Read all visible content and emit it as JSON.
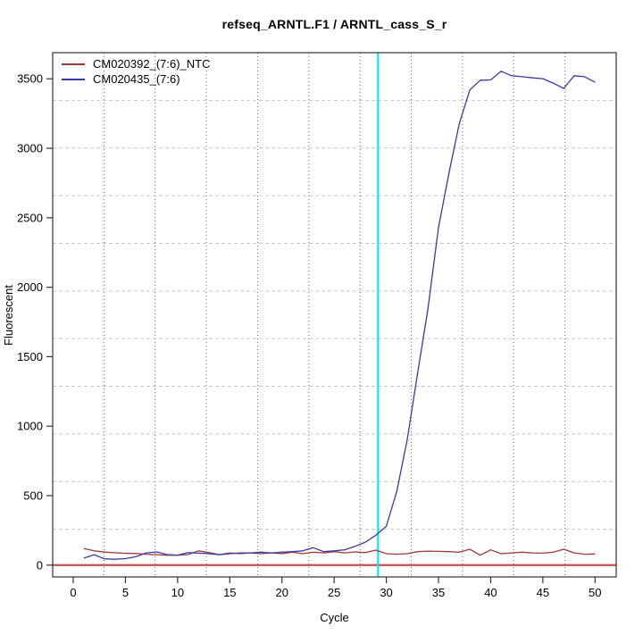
{
  "chart_data": {
    "type": "line",
    "title": "refseq_ARNTL.F1 / ARNTL_cass_S_r",
    "xlabel": "Cycle",
    "ylabel": "Fluorescent",
    "x_ticks": [
      0,
      5,
      10,
      15,
      20,
      25,
      30,
      35,
      40,
      45,
      50
    ],
    "y_ticks": [
      0,
      500,
      1000,
      1500,
      2000,
      2500,
      3000,
      3500
    ],
    "xlim": [
      -1.97,
      52.03
    ],
    "ylim": [
      -85,
      3688
    ],
    "grid": {
      "divisions": 11,
      "v_color": "#6e6e6e",
      "v_dash": "1 3",
      "h_color": "#c6c6c6",
      "h_dash": "4 3"
    },
    "threshold_line": {
      "y": 0,
      "color": "#c05050",
      "width": 2.2
    },
    "ct_line": {
      "x": 29.2,
      "color": "#00e8f0",
      "width": 2
    },
    "box_color": "#333333",
    "legend_position": "top-left",
    "series": [
      {
        "name": "CM020392_(7:6)_NTC",
        "color": "#9a3a3a",
        "x": [
          1,
          2,
          3,
          4,
          5,
          6,
          7,
          8,
          9,
          10,
          11,
          12,
          13,
          14,
          15,
          16,
          17,
          18,
          19,
          20,
          21,
          22,
          23,
          24,
          25,
          26,
          27,
          28,
          29,
          30,
          31,
          32,
          33,
          34,
          35,
          36,
          37,
          38,
          39,
          40,
          41,
          42,
          43,
          44,
          45,
          46,
          47,
          48,
          49,
          50
        ],
        "values": [
          120,
          103,
          94,
          89,
          85,
          84,
          78,
          75,
          71,
          71,
          76,
          103,
          90,
          76,
          88,
          82,
          88,
          82,
          88,
          82,
          93,
          82,
          93,
          88,
          97,
          88,
          95,
          90,
          108,
          82,
          78,
          82,
          97,
          101,
          99,
          97,
          93,
          114,
          71,
          110,
          82,
          88,
          93,
          88,
          86,
          93,
          114,
          88,
          78,
          80
        ]
      },
      {
        "name": "CM020435_(7:6)",
        "color": "#3a3aa6",
        "x": [
          1,
          2,
          3,
          4,
          5,
          6,
          7,
          8,
          9,
          10,
          11,
          12,
          13,
          14,
          15,
          16,
          17,
          18,
          19,
          20,
          21,
          22,
          23,
          24,
          25,
          26,
          27,
          28,
          29,
          30,
          31,
          32,
          33,
          34,
          35,
          36,
          37,
          38,
          39,
          40,
          41,
          42,
          43,
          44,
          45,
          46,
          47,
          48,
          49,
          50
        ],
        "values": [
          50,
          75,
          45,
          42,
          47,
          60,
          88,
          95,
          76,
          72,
          90,
          86,
          82,
          75,
          82,
          88,
          88,
          93,
          88,
          93,
          97,
          103,
          125,
          97,
          103,
          110,
          135,
          165,
          215,
          280,
          530,
          900,
          1380,
          1850,
          2430,
          2820,
          3180,
          3420,
          3490,
          3492,
          3554,
          3522,
          3515,
          3507,
          3501,
          3469,
          3431,
          3522,
          3515,
          3475
        ]
      }
    ]
  }
}
